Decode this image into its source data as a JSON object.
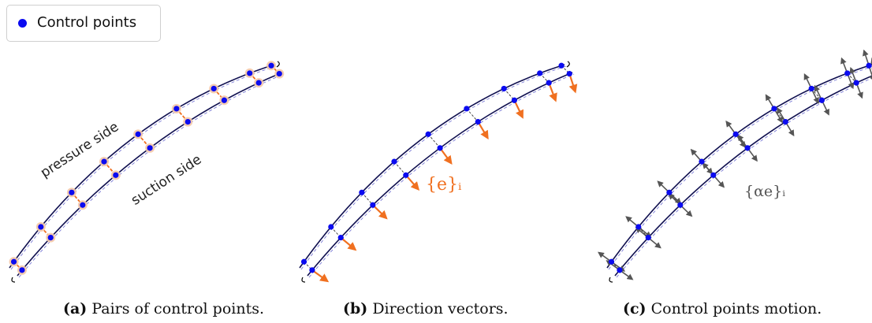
{
  "legend": {
    "label": "Control points"
  },
  "panel_a": {
    "caption_tag": "(a)",
    "caption_text": "Pairs of control points.",
    "upper_label": "pressure side",
    "lower_label": "suction side"
  },
  "panel_b": {
    "caption_tag": "(b)",
    "caption_text": "Direction vectors.",
    "vector_label": "{e}ᵢ"
  },
  "panel_c": {
    "caption_tag": "(c)",
    "caption_text": "Control points motion.",
    "vector_label": "{αe}ᵢ"
  },
  "colors": {
    "control_point": "#0b0bf0",
    "curve": "#101050",
    "pair_line": "#f07020",
    "direction_vector": "#f07020",
    "motion_vector": "#555555",
    "dashed_link": "#333333"
  }
}
